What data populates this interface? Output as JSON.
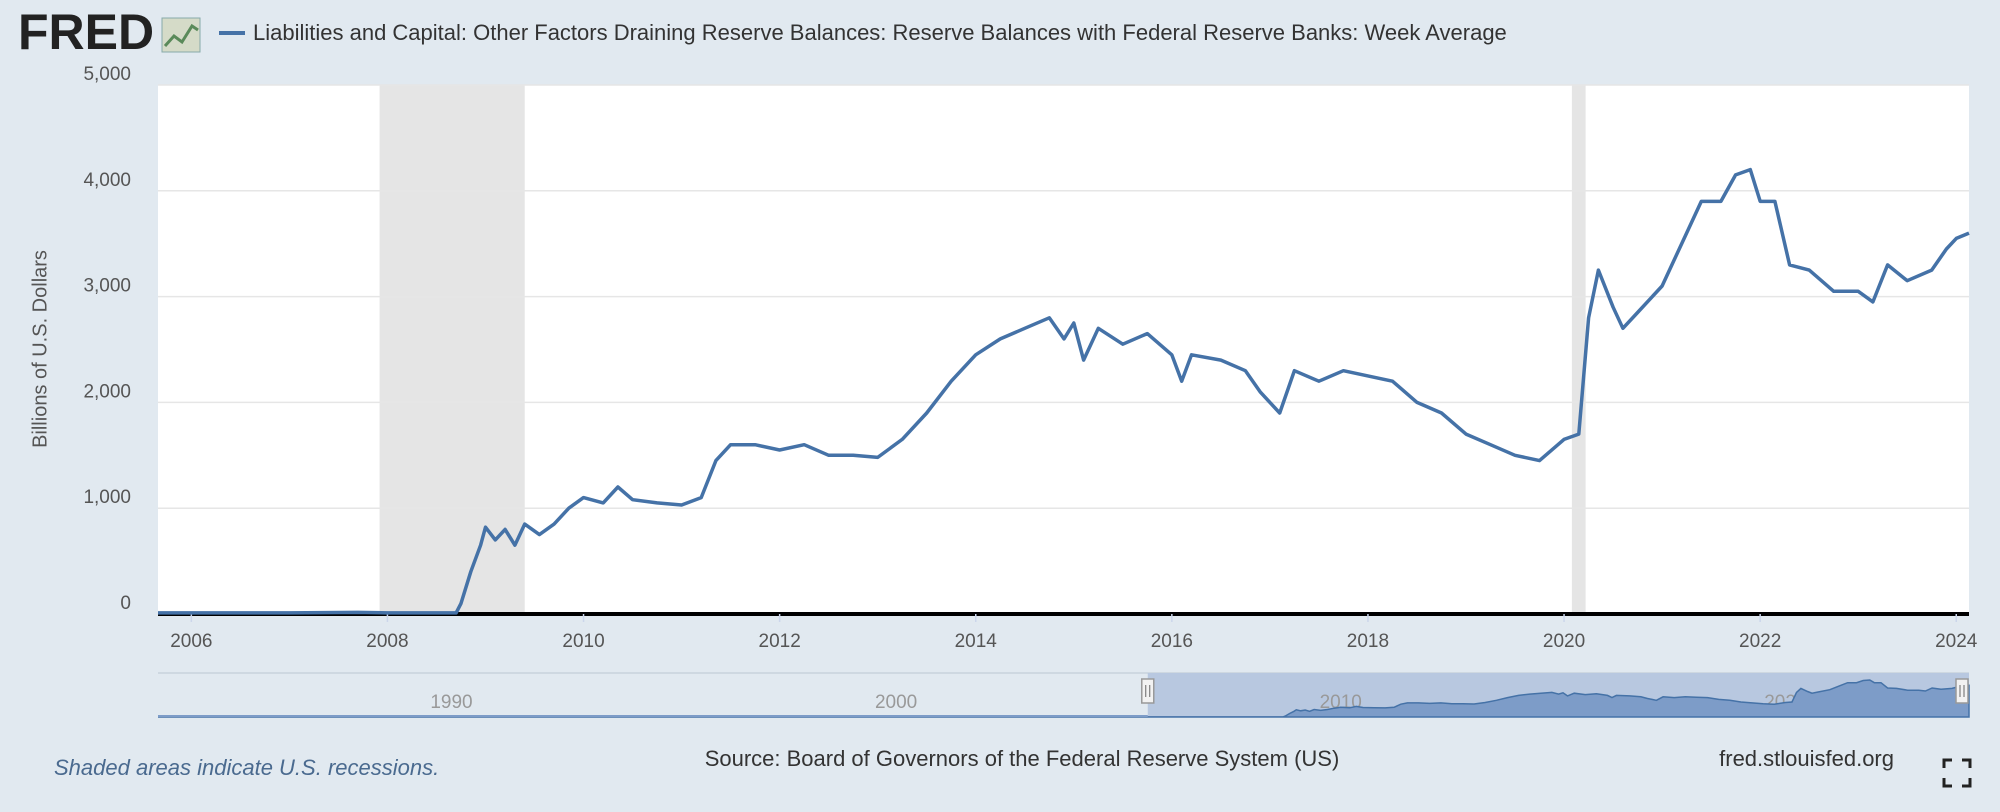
{
  "header": {
    "logo": "FRED"
  },
  "chart_data": {
    "type": "line",
    "title": "Liabilities and Capital: Other Factors Draining Reserve Balances: Reserve Balances with Federal Reserve Banks: Week Average",
    "y_label": "Billions of U.S. Dollars",
    "xlim": [
      2005.66,
      2024.13
    ],
    "xticks": [
      2006,
      2008,
      2010,
      2012,
      2014,
      2016,
      2018,
      2020,
      2022,
      2024
    ],
    "ylim": [
      0,
      5000
    ],
    "yticks": [
      {
        "value": 0,
        "label": "0"
      },
      {
        "value": 1000,
        "label": "1,000"
      },
      {
        "value": 2000,
        "label": "2,000"
      },
      {
        "value": 3000,
        "label": "3,000"
      },
      {
        "value": 4000,
        "label": "4,000"
      },
      {
        "value": 5000,
        "label": "5,000"
      }
    ],
    "grid": true,
    "recessions": [
      [
        2007.92,
        2009.4
      ],
      [
        2020.08,
        2020.22
      ]
    ],
    "series": [
      {
        "name": "Liabilities and Capital: Other Factors Draining Reserve Balances: Reserve Balances with Federal Reserve Banks: Week Average",
        "color": "#4572a7",
        "x": [
          2005.66,
          2006,
          2007,
          2007.7,
          2008,
          2008.7,
          2008.75,
          2008.85,
          2008.95,
          2009.0,
          2009.1,
          2009.2,
          2009.3,
          2009.4,
          2009.55,
          2009.7,
          2009.85,
          2010.0,
          2010.2,
          2010.35,
          2010.5,
          2010.75,
          2011.0,
          2011.2,
          2011.35,
          2011.5,
          2011.75,
          2012.0,
          2012.25,
          2012.5,
          2012.75,
          2013.0,
          2013.25,
          2013.5,
          2013.75,
          2014.0,
          2014.25,
          2014.5,
          2014.75,
          2014.9,
          2015.0,
          2015.1,
          2015.25,
          2015.5,
          2015.75,
          2016.0,
          2016.1,
          2016.2,
          2016.5,
          2016.75,
          2016.9,
          2017.0,
          2017.1,
          2017.25,
          2017.5,
          2017.75,
          2018.0,
          2018.25,
          2018.5,
          2018.75,
          2019.0,
          2019.25,
          2019.5,
          2019.75,
          2020.0,
          2020.15,
          2020.25,
          2020.35,
          2020.5,
          2020.6,
          2020.75,
          2021.0,
          2021.25,
          2021.4,
          2021.6,
          2021.75,
          2021.9,
          2022.0,
          2022.15,
          2022.3,
          2022.5,
          2022.75,
          2023.0,
          2023.15,
          2023.3,
          2023.5,
          2023.75,
          2023.9,
          2024.0,
          2024.13
        ],
        "values": [
          10,
          10,
          10,
          15,
          10,
          10,
          100,
          400,
          650,
          820,
          700,
          800,
          650,
          850,
          750,
          850,
          1000,
          1100,
          1050,
          1200,
          1080,
          1050,
          1030,
          1100,
          1450,
          1600,
          1600,
          1550,
          1600,
          1500,
          1500,
          1480,
          1650,
          1900,
          2200,
          2450,
          2600,
          2700,
          2800,
          2600,
          2750,
          2400,
          2700,
          2550,
          2650,
          2450,
          2200,
          2450,
          2400,
          2300,
          2100,
          2000,
          1900,
          2300,
          2200,
          2300,
          2250,
          2200,
          2000,
          1900,
          1700,
          1600,
          1500,
          1450,
          1650,
          1700,
          2800,
          3250,
          2900,
          2700,
          2850,
          3100,
          3600,
          3900,
          3900,
          4150,
          4200,
          3900,
          3900,
          3300,
          3250,
          3050,
          3050,
          2950,
          3300,
          3150,
          3250,
          3450,
          3550,
          3600
        ]
      }
    ],
    "navigator": {
      "xlim": [
        1983.4,
        2024.13
      ],
      "xticks": [
        1990,
        2000,
        2010,
        2020
      ]
    }
  },
  "footer": {
    "note": "Shaded areas indicate U.S. recessions.",
    "source": "Source: Board of Governors of the Federal Reserve System (US)",
    "site": "fred.stlouisfed.org"
  }
}
